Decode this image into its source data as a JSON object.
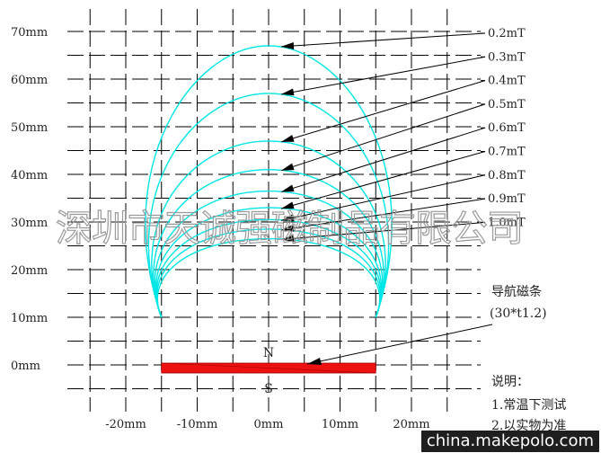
{
  "y_axis": {
    "labels": [
      "0mm",
      "10mm",
      "20mm",
      "30mm",
      "40mm",
      "50mm",
      "60mm",
      "70mm"
    ],
    "values": [
      0,
      10,
      20,
      30,
      40,
      50,
      60,
      70
    ]
  },
  "x_axis": {
    "labels": [
      "-20mm",
      "-10mm",
      "0mm",
      "10mm",
      "20mm"
    ],
    "values": [
      -20,
      -10,
      0,
      10,
      20
    ]
  },
  "field_lines": {
    "color": "#00e5e5",
    "items": [
      {
        "label": "0.2mT",
        "value": 0.2,
        "peak_mm": 67
      },
      {
        "label": "0.3mT",
        "value": 0.3,
        "peak_mm": 57
      },
      {
        "label": "0.4mT",
        "value": 0.4,
        "peak_mm": 47
      },
      {
        "label": "0.5mT",
        "value": 0.5,
        "peak_mm": 41
      },
      {
        "label": "0.6mT",
        "value": 0.6,
        "peak_mm": 36.5
      },
      {
        "label": "0.7mT",
        "value": 0.7,
        "peak_mm": 33
      },
      {
        "label": "0.8mT",
        "value": 0.8,
        "peak_mm": 30.5
      },
      {
        "label": "0.9mT",
        "value": 0.9,
        "peak_mm": 28.5
      },
      {
        "label": "1.0mT",
        "value": 1.0,
        "peak_mm": 26.5
      }
    ]
  },
  "magnet": {
    "label_line1": "导航磁条",
    "label_line2": "(30*t1.2)",
    "color": "#ee1111",
    "pole_north": "N",
    "pole_south": "S",
    "north_color": "#ff33ff",
    "south_color": "#22bb22"
  },
  "notes": {
    "title": "说明：",
    "item1": "1.常温下测试",
    "item2": "2.以实物为准"
  },
  "watermark": "深圳市天诚强磁制品有限公司",
  "site_badge": "china.makepolo.com"
}
